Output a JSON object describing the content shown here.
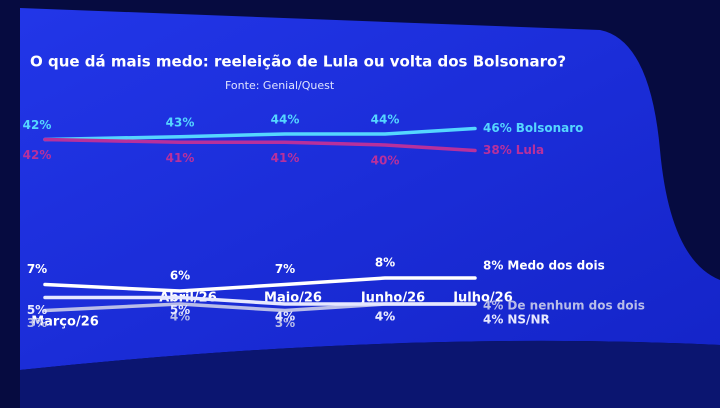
{
  "chart_data": {
    "type": "line",
    "title": "O que dá mais medo: reeleição de Lula ou volta dos Bolsonaro?",
    "subtitle": "Fonte: Genial/Quest",
    "categories": [
      "Março/26",
      "Abril/26",
      "Maio/26",
      "Junho/26",
      "Julho/26"
    ],
    "ylim": [
      0,
      20
    ],
    "y2lim": [
      20,
      60
    ],
    "series": [
      {
        "name": "Bolsonaro",
        "color": "#55d6ff",
        "axis": "y2",
        "values": [
          42,
          43,
          44,
          44,
          46
        ],
        "value_labels": [
          "42%",
          "43%",
          "44%",
          "44%",
          "46%"
        ]
      },
      {
        "name": "Lula",
        "color": "#b8309c",
        "axis": "y2",
        "values": [
          42,
          41,
          41,
          40,
          38
        ],
        "value_labels": [
          "42%",
          "41%",
          "41%",
          "40%",
          "38%"
        ]
      },
      {
        "name": "Medo dos dois",
        "color": "#ffffff",
        "values": [
          7,
          6,
          7,
          8,
          8
        ],
        "value_labels": [
          "7%",
          "6%",
          "7%",
          "8%",
          "8%"
        ]
      },
      {
        "name": "De nenhum dos dois",
        "color": "#b9bde8",
        "values": [
          3,
          4,
          3,
          4,
          4
        ],
        "value_labels": [
          "3%",
          "4%",
          "3%",
          "4%",
          "4%"
        ]
      },
      {
        "name": "NS/NR",
        "color": "#e6e8ff",
        "values": [
          5,
          5,
          4,
          4,
          4
        ],
        "value_labels": [
          "5%",
          "5%",
          "4%",
          "4%",
          "4%"
        ]
      }
    ]
  }
}
